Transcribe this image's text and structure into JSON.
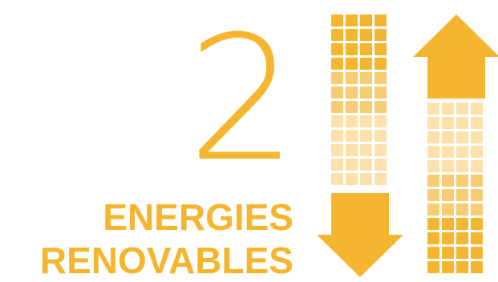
{
  "heading": {
    "number": "2",
    "line1": "ENERGIES",
    "line2": "RENOVABLES"
  },
  "icons": {
    "down": "arrow-down-icon",
    "up": "arrow-up-icon"
  },
  "colors": {
    "accent": "#F5B52E",
    "accent_mid": "#F8CC72",
    "accent_light": "#FCE1AA"
  }
}
